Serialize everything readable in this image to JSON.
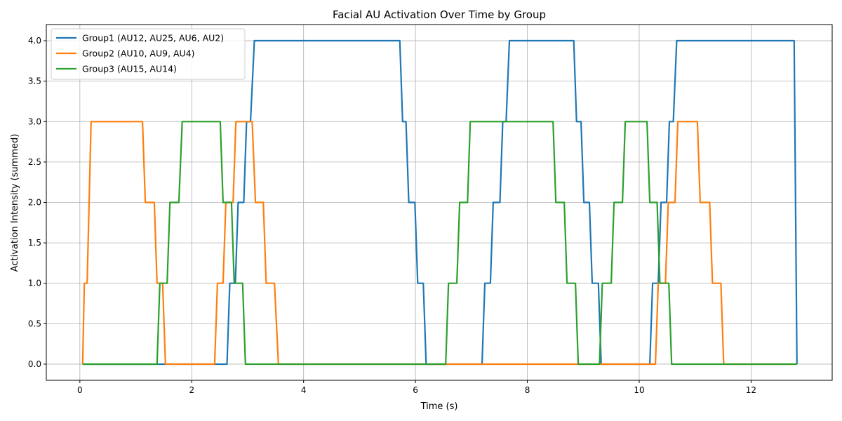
{
  "chart_data": {
    "type": "line",
    "title": "Facial AU Activation Over Time by Group",
    "xlabel": "Time (s)",
    "ylabel": "Activation Intensity (summed)",
    "xlim": [
      -0.6,
      13.45
    ],
    "ylim": [
      -0.2,
      4.2
    ],
    "xticks": [
      0,
      2,
      4,
      6,
      8,
      10,
      12
    ],
    "xtick_labels": [
      "0",
      "2",
      "4",
      "6",
      "8",
      "10",
      "12"
    ],
    "yticks": [
      0.0,
      0.5,
      1.0,
      1.5,
      2.0,
      2.5,
      3.0,
      3.5,
      4.0
    ],
    "ytick_labels": [
      "0.0",
      "0.5",
      "1.0",
      "1.5",
      "2.0",
      "2.5",
      "3.0",
      "3.5",
      "4.0"
    ],
    "grid": true,
    "legend_position": "top-left",
    "series": [
      {
        "name": "Group1 (AU12, AU25, AU6, AU2)",
        "color": "#1f77b4",
        "points": [
          [
            0.05,
            0
          ],
          [
            2.63,
            0
          ],
          [
            2.68,
            1
          ],
          [
            2.78,
            1
          ],
          [
            2.83,
            2
          ],
          [
            2.93,
            2
          ],
          [
            2.98,
            3
          ],
          [
            3.05,
            3
          ],
          [
            3.12,
            4
          ],
          [
            5.72,
            4
          ],
          [
            5.77,
            3
          ],
          [
            5.83,
            3
          ],
          [
            5.88,
            2
          ],
          [
            5.99,
            2
          ],
          [
            6.04,
            1
          ],
          [
            6.14,
            1
          ],
          [
            6.19,
            0
          ],
          [
            7.19,
            0
          ],
          [
            7.24,
            1
          ],
          [
            7.34,
            1
          ],
          [
            7.39,
            2
          ],
          [
            7.51,
            2
          ],
          [
            7.56,
            3
          ],
          [
            7.62,
            3
          ],
          [
            7.68,
            4
          ],
          [
            8.83,
            4
          ],
          [
            8.88,
            3
          ],
          [
            8.96,
            3
          ],
          [
            9.01,
            2
          ],
          [
            9.11,
            2
          ],
          [
            9.16,
            1
          ],
          [
            9.27,
            1
          ],
          [
            9.32,
            0
          ],
          [
            10.19,
            0
          ],
          [
            10.24,
            1
          ],
          [
            10.34,
            1
          ],
          [
            10.39,
            2
          ],
          [
            10.49,
            2
          ],
          [
            10.54,
            3
          ],
          [
            10.61,
            3
          ],
          [
            10.67,
            4
          ],
          [
            12.77,
            4
          ],
          [
            12.82,
            0
          ]
        ]
      },
      {
        "name": "Group2 (AU10, AU9, AU4)",
        "color": "#ff7f0e",
        "points": [
          [
            0.05,
            0
          ],
          [
            0.08,
            1
          ],
          [
            0.13,
            1
          ],
          [
            0.2,
            3
          ],
          [
            1.12,
            3
          ],
          [
            1.17,
            2
          ],
          [
            1.33,
            2
          ],
          [
            1.38,
            1
          ],
          [
            1.48,
            1
          ],
          [
            1.53,
            0
          ],
          [
            2.41,
            0
          ],
          [
            2.46,
            1
          ],
          [
            2.56,
            1
          ],
          [
            2.61,
            2
          ],
          [
            2.74,
            2
          ],
          [
            2.79,
            3
          ],
          [
            3.08,
            3
          ],
          [
            3.14,
            2
          ],
          [
            3.28,
            2
          ],
          [
            3.33,
            1
          ],
          [
            3.48,
            1
          ],
          [
            3.55,
            0
          ],
          [
            10.29,
            0
          ],
          [
            10.34,
            1
          ],
          [
            10.47,
            1
          ],
          [
            10.52,
            2
          ],
          [
            10.64,
            2
          ],
          [
            10.69,
            3
          ],
          [
            11.04,
            3
          ],
          [
            11.09,
            2
          ],
          [
            11.26,
            2
          ],
          [
            11.31,
            1
          ],
          [
            11.46,
            1
          ],
          [
            11.51,
            0
          ],
          [
            12.82,
            0
          ]
        ]
      },
      {
        "name": "Group3 (AU15, AU14)",
        "color": "#2ca02c",
        "points": [
          [
            0.05,
            0
          ],
          [
            1.38,
            0
          ],
          [
            1.43,
            1
          ],
          [
            1.56,
            1
          ],
          [
            1.61,
            2
          ],
          [
            1.77,
            2
          ],
          [
            1.83,
            3
          ],
          [
            2.51,
            3
          ],
          [
            2.56,
            2
          ],
          [
            2.71,
            2
          ],
          [
            2.76,
            1
          ],
          [
            2.91,
            1
          ],
          [
            2.96,
            0
          ],
          [
            6.54,
            0
          ],
          [
            6.59,
            1
          ],
          [
            6.74,
            1
          ],
          [
            6.79,
            2
          ],
          [
            6.93,
            2
          ],
          [
            6.98,
            3
          ],
          [
            8.46,
            3
          ],
          [
            8.51,
            2
          ],
          [
            8.66,
            2
          ],
          [
            8.71,
            1
          ],
          [
            8.86,
            1
          ],
          [
            8.91,
            0
          ],
          [
            9.29,
            0
          ],
          [
            9.34,
            1
          ],
          [
            9.5,
            1
          ],
          [
            9.55,
            2
          ],
          [
            9.7,
            2
          ],
          [
            9.75,
            3
          ],
          [
            10.14,
            3
          ],
          [
            10.19,
            2
          ],
          [
            10.32,
            2
          ],
          [
            10.37,
            1
          ],
          [
            10.53,
            1
          ],
          [
            10.58,
            0
          ],
          [
            12.82,
            0
          ]
        ]
      }
    ]
  }
}
